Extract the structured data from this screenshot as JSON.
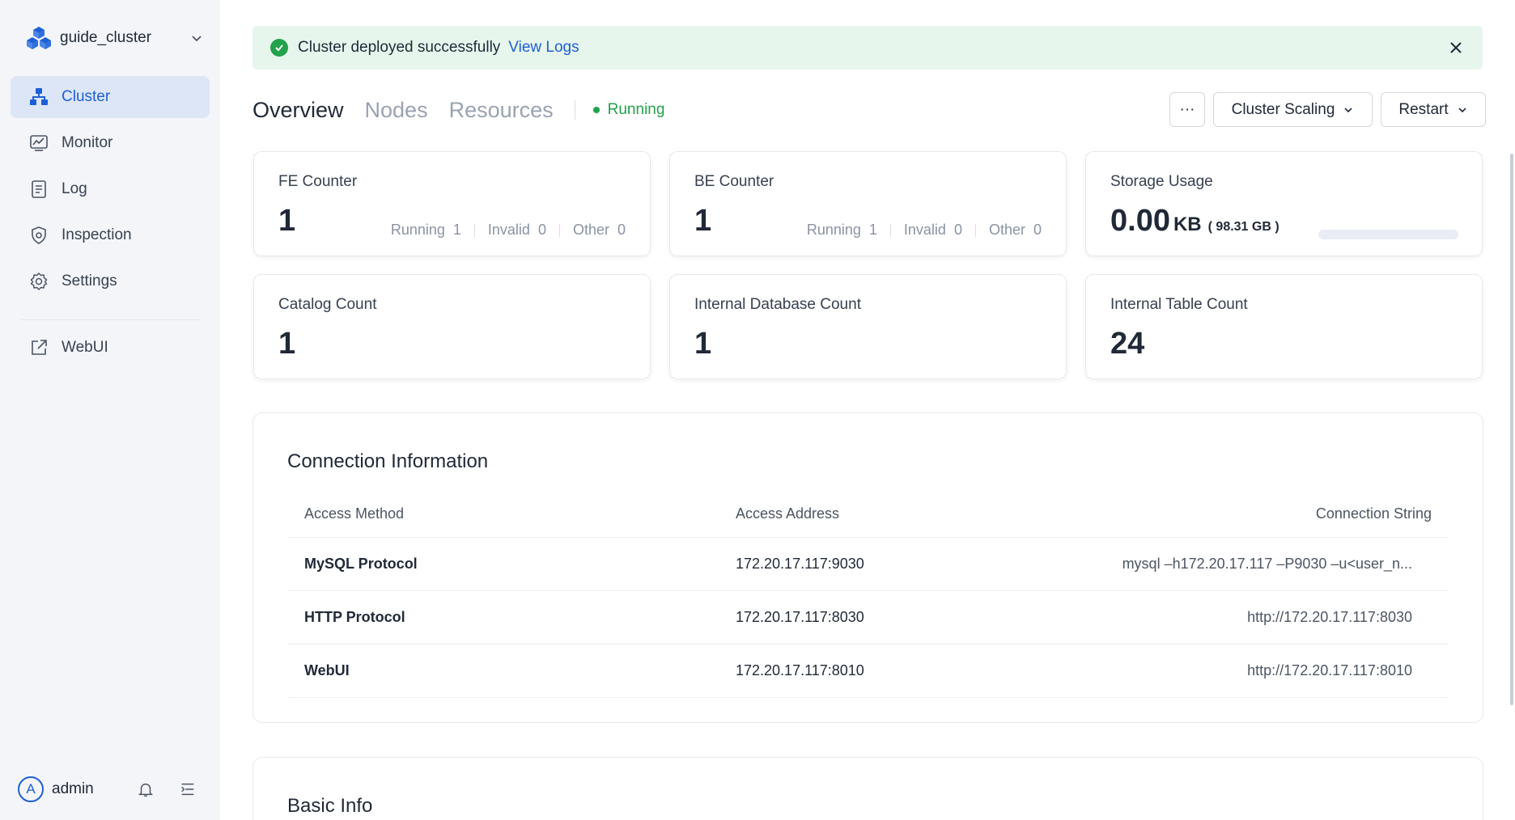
{
  "sidebar": {
    "cluster_name": "guide_cluster",
    "items": [
      {
        "label": "Cluster",
        "icon": "cluster-icon",
        "active": true
      },
      {
        "label": "Monitor",
        "icon": "monitor-icon"
      },
      {
        "label": "Log",
        "icon": "log-icon"
      },
      {
        "label": "Inspection",
        "icon": "inspection-icon"
      },
      {
        "label": "Settings",
        "icon": "settings-icon"
      }
    ],
    "webui": {
      "label": "WebUI",
      "icon": "external-link-icon"
    },
    "user": {
      "initial": "A",
      "name": "admin"
    }
  },
  "alert": {
    "message": "Cluster deployed successfully",
    "link": "View Logs"
  },
  "tabs": [
    {
      "label": "Overview",
      "active": true
    },
    {
      "label": "Nodes"
    },
    {
      "label": "Resources"
    }
  ],
  "status": "Running",
  "toolbar": {
    "more_label": "···",
    "scaling_label": "Cluster Scaling",
    "restart_label": "Restart"
  },
  "cards": {
    "fe": {
      "title": "FE Counter",
      "value": "1",
      "running_label": "Running",
      "running": "1",
      "invalid_label": "Invalid",
      "invalid": "0",
      "other_label": "Other",
      "other": "0"
    },
    "be": {
      "title": "BE Counter",
      "value": "1",
      "running_label": "Running",
      "running": "1",
      "invalid_label": "Invalid",
      "invalid": "0",
      "other_label": "Other",
      "other": "0"
    },
    "storage": {
      "title": "Storage Usage",
      "value": "0.00",
      "unit": "KB",
      "total": "( 98.31  GB )",
      "fraction": 0.0
    },
    "catalog": {
      "title": "Catalog Count",
      "value": "1"
    },
    "database": {
      "title": "Internal Database Count",
      "value": "1"
    },
    "table": {
      "title": "Internal Table Count",
      "value": "24"
    }
  },
  "connection": {
    "title": "Connection Information",
    "headers": [
      "Access Method",
      "Access Address",
      "Connection String"
    ],
    "rows": [
      [
        "MySQL Protocol",
        "172.20.17.117:9030",
        "mysql –h172.20.17.117 –P9030 –u<user_n..."
      ],
      [
        "HTTP Protocol",
        "172.20.17.117:8030",
        "http://172.20.17.117:8030"
      ],
      [
        "WebUI",
        "172.20.17.117:8010",
        "http://172.20.17.117:8010"
      ]
    ]
  },
  "basic_info": {
    "title": "Basic Info"
  },
  "colors": {
    "accent": "#1d5fd6",
    "success": "#22a24b",
    "sidebar_bg": "#f3f5f9",
    "alert_bg": "#e7f6ec"
  }
}
